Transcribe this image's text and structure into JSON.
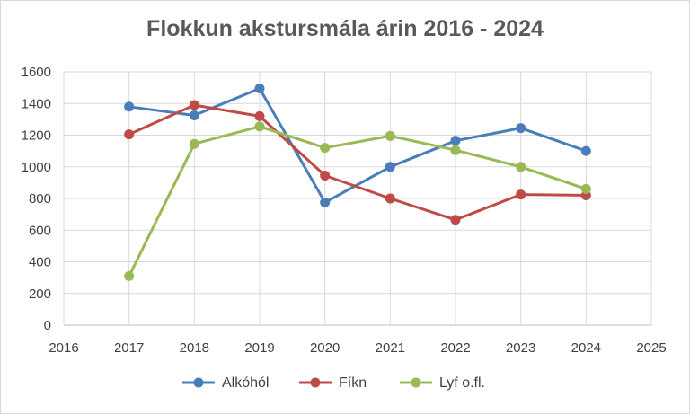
{
  "chart_data": {
    "type": "line",
    "title": "Flokkun akstursmála árin 2016 - 2024",
    "xlabel": "",
    "ylabel": "",
    "xlim": [
      2016,
      2025
    ],
    "ylim": [
      0,
      1600
    ],
    "x_ticks": [
      2016,
      2017,
      2018,
      2019,
      2020,
      2021,
      2022,
      2023,
      2024,
      2025
    ],
    "y_ticks": [
      0,
      200,
      400,
      600,
      800,
      1000,
      1200,
      1400,
      1600
    ],
    "grid": true,
    "legend_position": "bottom",
    "series": [
      {
        "name": "Alkóhól",
        "color": "#4a7ebb",
        "x": [
          2017,
          2018,
          2019,
          2020,
          2021,
          2022,
          2023,
          2024
        ],
        "values": [
          1380,
          1325,
          1495,
          775,
          1000,
          1165,
          1245,
          1100
        ]
      },
      {
        "name": "Fíkn",
        "color": "#be4b48",
        "x": [
          2017,
          2018,
          2019,
          2020,
          2021,
          2022,
          2023,
          2024
        ],
        "values": [
          1205,
          1390,
          1320,
          945,
          800,
          665,
          825,
          820
        ]
      },
      {
        "name": "Lyf o.fl.",
        "color": "#98b954",
        "x": [
          2017,
          2018,
          2019,
          2020,
          2021,
          2022,
          2023,
          2024
        ],
        "values": [
          310,
          1145,
          1255,
          1120,
          1195,
          1105,
          1000,
          860
        ]
      }
    ]
  }
}
